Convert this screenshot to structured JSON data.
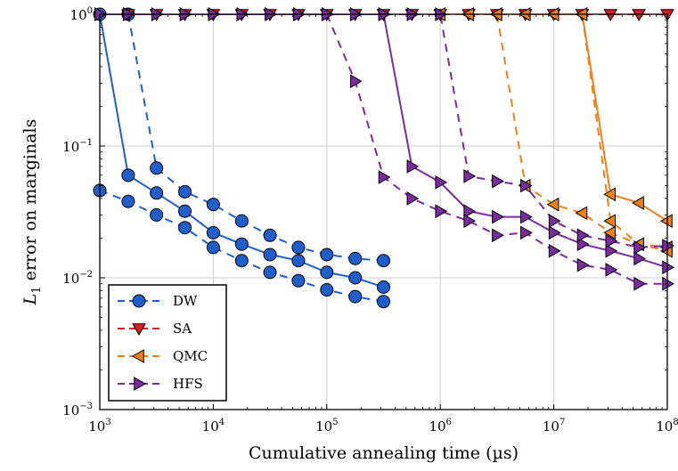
{
  "chart_data": {
    "type": "line",
    "xlabel": "Cumulative annealing time (µs)",
    "ylabel_prefix": "L",
    "ylabel_sub": "1",
    "ylabel_rest": " error on marginals",
    "xscale": "log",
    "yscale": "log",
    "xlim": [
      1000,
      100000000
    ],
    "ylim": [
      0.001,
      1
    ],
    "grid": true,
    "legend_position": "bottom-left",
    "x_ticks": [
      {
        "base": "10",
        "exp": "3",
        "value": 1000
      },
      {
        "base": "10",
        "exp": "4",
        "value": 10000
      },
      {
        "base": "10",
        "exp": "5",
        "value": 100000
      },
      {
        "base": "10",
        "exp": "6",
        "value": 1000000
      },
      {
        "base": "10",
        "exp": "7",
        "value": 10000000
      },
      {
        "base": "10",
        "exp": "8",
        "value": 100000000
      }
    ],
    "y_ticks": [
      {
        "base": "10",
        "exp": "0",
        "value": 1
      },
      {
        "base": "10",
        "exp": "−1",
        "value": 0.1
      },
      {
        "base": "10",
        "exp": "−2",
        "value": 0.01
      },
      {
        "base": "10",
        "exp": "−3",
        "value": 0.001
      }
    ],
    "legend": [
      {
        "name": "DW",
        "color": "#1f5fcc",
        "marker": "circle"
      },
      {
        "name": "SA",
        "color": "#d62020",
        "marker": "triangle-down"
      },
      {
        "name": "QMC",
        "color": "#f57f17",
        "marker": "triangle-left"
      },
      {
        "name": "HFS",
        "color": "#7b2aa0",
        "marker": "triangle-right"
      }
    ],
    "series": [
      {
        "group": "DW",
        "color": "#1f5fcc",
        "marker": "circle",
        "dash": "solid",
        "points": [
          [
            1000,
            1
          ],
          [
            1780,
            0.06
          ],
          [
            3160,
            0.044
          ],
          [
            5620,
            0.032
          ],
          [
            10000,
            0.022
          ],
          [
            17800,
            0.018
          ],
          [
            31600,
            0.015
          ],
          [
            56200,
            0.0135
          ],
          [
            100000,
            0.011
          ],
          [
            178000,
            0.01
          ],
          [
            316000,
            0.0085
          ]
        ]
      },
      {
        "group": "DW",
        "color": "#1f5fcc",
        "marker": "circle",
        "dash": "dashed",
        "points": [
          [
            1780,
            1
          ],
          [
            3160,
            0.068
          ],
          [
            5620,
            0.045
          ],
          [
            10000,
            0.036
          ],
          [
            17800,
            0.027
          ],
          [
            31600,
            0.021
          ],
          [
            56200,
            0.017
          ],
          [
            100000,
            0.015
          ],
          [
            178000,
            0.014
          ],
          [
            316000,
            0.0135
          ]
        ]
      },
      {
        "group": "DW",
        "color": "#1f5fcc",
        "marker": "circle",
        "dash": "dashed",
        "points": [
          [
            1000,
            0.046
          ],
          [
            1780,
            0.038
          ],
          [
            3160,
            0.03
          ],
          [
            5620,
            0.024
          ],
          [
            10000,
            0.017
          ],
          [
            17800,
            0.0135
          ],
          [
            31600,
            0.011
          ],
          [
            56200,
            0.0095
          ],
          [
            100000,
            0.0081
          ],
          [
            178000,
            0.0072
          ],
          [
            316000,
            0.0066
          ]
        ]
      },
      {
        "group": "SA",
        "color": "#d62020",
        "marker": "triangle-down",
        "dash": "dashed",
        "points": [
          [
            1780,
            1
          ],
          [
            3160,
            1
          ],
          [
            5620,
            1
          ],
          [
            10000,
            1
          ],
          [
            17800,
            1
          ],
          [
            31600,
            1
          ],
          [
            56200,
            1
          ],
          [
            100000,
            1
          ],
          [
            178000,
            1
          ],
          [
            316000,
            1
          ],
          [
            562000,
            1
          ],
          [
            1000000,
            1
          ],
          [
            1780000,
            1
          ],
          [
            3160000,
            1
          ],
          [
            5620000,
            1
          ],
          [
            10000000,
            1
          ],
          [
            17800000,
            1
          ],
          [
            31600000,
            1
          ],
          [
            56200000,
            1
          ],
          [
            100000000,
            1
          ]
        ]
      },
      {
        "group": "QMC",
        "color": "#f57f17",
        "marker": "triangle-left",
        "dash": "dashed",
        "points": [
          [
            1000000,
            1
          ],
          [
            1780000,
            1
          ],
          [
            3160000,
            1
          ],
          [
            5620000,
            0.05
          ],
          [
            10000000,
            0.036
          ],
          [
            17800000,
            0.031
          ],
          [
            31600000,
            0.022
          ],
          [
            56200000,
            0.018
          ],
          [
            100000000,
            0.017
          ]
        ]
      },
      {
        "group": "QMC",
        "color": "#f57f17",
        "marker": "triangle-left",
        "dash": "dashed",
        "points": [
          [
            1000000,
            1
          ],
          [
            1780000,
            1
          ],
          [
            3160000,
            1
          ],
          [
            5620000,
            1
          ],
          [
            10000000,
            1
          ],
          [
            17800000,
            1
          ],
          [
            31600000,
            0.027
          ],
          [
            56200000,
            0.018
          ],
          [
            100000000,
            0.016
          ]
        ]
      },
      {
        "group": "QMC",
        "color": "#f57f17",
        "marker": "triangle-left",
        "dash": "solid",
        "points": [
          [
            5620000,
            1
          ],
          [
            10000000,
            1
          ],
          [
            17800000,
            1
          ],
          [
            31600000,
            0.043
          ],
          [
            56200000,
            0.037
          ],
          [
            100000000,
            0.027
          ]
        ]
      },
      {
        "group": "HFS",
        "color": "#7b2aa0",
        "marker": "triangle-right",
        "dash": "solid",
        "points": [
          [
            1000,
            1
          ],
          [
            1780,
            1
          ],
          [
            3160,
            1
          ],
          [
            5620,
            1
          ],
          [
            10000,
            1
          ],
          [
            17800,
            1
          ],
          [
            31600,
            1
          ],
          [
            56200,
            1
          ],
          [
            100000,
            1
          ],
          [
            178000,
            1
          ],
          [
            316000,
            1
          ],
          [
            562000,
            0.07
          ],
          [
            1000000,
            0.053
          ],
          [
            1780000,
            0.032
          ],
          [
            3160000,
            0.029
          ],
          [
            5620000,
            0.029
          ],
          [
            10000000,
            0.022
          ],
          [
            17800000,
            0.018
          ],
          [
            31600000,
            0.016
          ],
          [
            56200000,
            0.014
          ],
          [
            100000000,
            0.012
          ]
        ]
      },
      {
        "group": "HFS",
        "color": "#7b2aa0",
        "marker": "triangle-right",
        "dash": "dashed",
        "points": [
          [
            1000,
            1
          ],
          [
            1780,
            1
          ],
          [
            3160,
            1
          ],
          [
            5620,
            1
          ],
          [
            10000,
            1
          ],
          [
            17800,
            1
          ],
          [
            31600,
            1
          ],
          [
            56200,
            1
          ],
          [
            100000,
            1
          ],
          [
            178000,
            1
          ],
          [
            316000,
            1
          ],
          [
            562000,
            1
          ],
          [
            1000000,
            1
          ],
          [
            1780000,
            0.059
          ],
          [
            3160000,
            0.054
          ],
          [
            5620000,
            0.05
          ],
          [
            10000000,
            0.027
          ],
          [
            17800000,
            0.021
          ],
          [
            31600000,
            0.019
          ],
          [
            56200000,
            0.017
          ],
          [
            100000000,
            0.0175
          ]
        ]
      },
      {
        "group": "HFS",
        "color": "#7b2aa0",
        "marker": "triangle-right",
        "dash": "dashed",
        "points": [
          [
            100000,
            1
          ],
          [
            178000,
            0.31
          ],
          [
            316000,
            0.058
          ],
          [
            562000,
            0.04
          ],
          [
            1000000,
            0.032
          ],
          [
            1780000,
            0.027
          ],
          [
            3160000,
            0.021
          ],
          [
            5620000,
            0.022
          ],
          [
            10000000,
            0.016
          ],
          [
            17800000,
            0.0125
          ],
          [
            31600000,
            0.0115
          ],
          [
            56200000,
            0.009
          ],
          [
            100000000,
            0.009
          ]
        ]
      }
    ]
  }
}
